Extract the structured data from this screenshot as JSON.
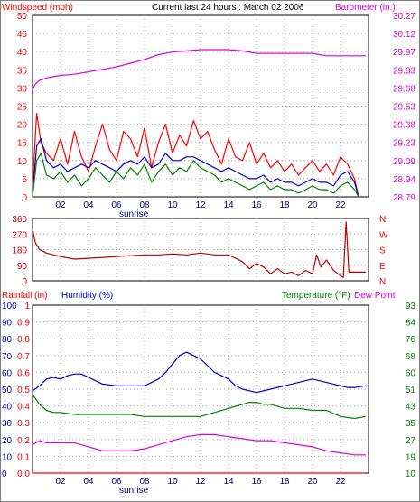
{
  "header": {
    "title": "Current last 24 hours : March 02 2006",
    "left_label": "Windspeed (mph)",
    "right_label": "Barometer (in.)"
  },
  "colors": {
    "red": "#ff0000",
    "blue": "#0000c8",
    "green": "#008000",
    "magenta": "#e000e0",
    "darkred": "#c00000",
    "black": "#000000"
  },
  "chart_data": [
    {
      "id": "wind_baro",
      "type": "line",
      "x_ticks": [
        "02",
        "04",
        "06",
        "08",
        "10",
        "12",
        "14",
        "16",
        "18",
        "20",
        "22"
      ],
      "x_marker": "sunrise",
      "ylabel": "Windspeed (mph)",
      "ylim": [
        0,
        50
      ],
      "y_ticks": [
        0,
        5,
        10,
        15,
        20,
        25,
        30,
        35,
        40,
        45,
        50
      ],
      "y2label": "Barometer (in.)",
      "y2lim": [
        28.79,
        30.27
      ],
      "y2_ticks": [
        "28.79",
        "28.94",
        "29.09",
        "29.23",
        "29.38",
        "29.53",
        "29.68",
        "29.83",
        "29.97",
        "30.12",
        "30.27"
      ],
      "grid": true,
      "series": [
        {
          "id": "gust",
          "axis": "y",
          "color": "red",
          "hours": [
            0,
            0.3,
            0.6,
            1,
            1.5,
            2,
            2.5,
            3,
            3.5,
            4,
            4.5,
            5,
            5.5,
            6,
            6.5,
            7,
            7.5,
            8,
            8.5,
            9,
            9.5,
            10,
            10.5,
            11,
            11.5,
            12,
            12.5,
            13,
            13.5,
            14,
            14.5,
            15,
            15.5,
            16,
            16.5,
            17,
            17.5,
            18,
            18.5,
            19,
            19.5,
            20,
            20.5,
            21,
            21.5,
            22,
            22.5,
            23,
            23.3
          ],
          "values": [
            3,
            23,
            15,
            12,
            10,
            16,
            9,
            18,
            11,
            7,
            14,
            20,
            13,
            10,
            18,
            16,
            11,
            19,
            8,
            15,
            20,
            12,
            17,
            14,
            21,
            16,
            18,
            13,
            9,
            16,
            11,
            10,
            15,
            9,
            12,
            8,
            10,
            7,
            9,
            6,
            8,
            10,
            7,
            9,
            6,
            11,
            9,
            5,
            0
          ]
        },
        {
          "id": "speed",
          "axis": "y",
          "color": "blue",
          "hours": [
            0,
            0.3,
            0.6,
            1,
            1.5,
            2,
            2.5,
            3,
            3.5,
            4,
            4.5,
            5,
            5.5,
            6,
            6.5,
            7,
            7.5,
            8,
            8.5,
            9,
            9.5,
            10,
            10.5,
            11,
            11.5,
            12,
            12.5,
            13,
            13.5,
            14,
            14.5,
            15,
            15.5,
            16,
            16.5,
            17,
            17.5,
            18,
            18.5,
            19,
            19.5,
            20,
            20.5,
            21,
            21.5,
            22,
            22.5,
            23,
            23.3
          ],
          "values": [
            1,
            14,
            16,
            10,
            8,
            9,
            7,
            8,
            9,
            8,
            10,
            9,
            8,
            7,
            9,
            10,
            9,
            11,
            8,
            9,
            12,
            10,
            10,
            11,
            11,
            10,
            9,
            8,
            7,
            8,
            7,
            6,
            5,
            5,
            6,
            4,
            5,
            4,
            4,
            3,
            4,
            5,
            4,
            4,
            3,
            6,
            7,
            4,
            0
          ]
        },
        {
          "id": "average",
          "axis": "y",
          "color": "green",
          "hours": [
            0,
            0.3,
            0.6,
            1,
            1.5,
            2,
            2.5,
            3,
            3.5,
            4,
            4.5,
            5,
            5.5,
            6,
            6.5,
            7,
            7.5,
            8,
            8.5,
            9,
            9.5,
            10,
            10.5,
            11,
            11.5,
            12,
            12.5,
            13,
            13.5,
            14,
            14.5,
            15,
            15.5,
            16,
            16.5,
            17,
            17.5,
            18,
            18.5,
            19,
            19.5,
            20,
            20.5,
            21,
            21.5,
            22,
            22.5,
            23,
            23.3
          ],
          "values": [
            0,
            10,
            12,
            6,
            5,
            7,
            4,
            6,
            3,
            5,
            8,
            6,
            4,
            7,
            5,
            8,
            6,
            9,
            4,
            7,
            9,
            6,
            8,
            7,
            10,
            8,
            7,
            6,
            4,
            5,
            4,
            3,
            2,
            3,
            4,
            2,
            3,
            2,
            2,
            1,
            2,
            3,
            2,
            2,
            1,
            3,
            4,
            2,
            0
          ]
        },
        {
          "id": "barometer",
          "axis": "y2",
          "color": "magenta",
          "hours": [
            0,
            0.2,
            0.5,
            1,
            1.5,
            2,
            3,
            4,
            5,
            6,
            7,
            8,
            9,
            10,
            11,
            12,
            13,
            14,
            15,
            16,
            17,
            18,
            19,
            20,
            21,
            22,
            23,
            23.8
          ],
          "values": [
            29.66,
            29.71,
            29.74,
            29.76,
            29.77,
            29.78,
            29.79,
            29.81,
            29.83,
            29.85,
            29.88,
            29.91,
            29.95,
            29.97,
            29.98,
            29.99,
            29.99,
            29.99,
            29.98,
            29.96,
            29.96,
            29.96,
            29.96,
            29.96,
            29.94,
            29.94,
            29.94,
            29.94
          ]
        }
      ]
    },
    {
      "id": "wind_direction",
      "type": "line",
      "x_ticks": [
        "02",
        "04",
        "06",
        "08",
        "10",
        "12",
        "14",
        "16",
        "18",
        "20",
        "22"
      ],
      "ylim": [
        0,
        360
      ],
      "y_ticks": [
        0,
        90,
        180,
        270,
        360
      ],
      "y2_labels": [
        "N",
        "W",
        "S",
        "E",
        "N"
      ],
      "grid": true,
      "series": [
        {
          "id": "direction",
          "axis": "y",
          "color": "darkred",
          "hours": [
            0,
            0.2,
            0.5,
            1,
            2,
            3,
            4,
            5,
            6,
            7,
            8,
            9,
            10,
            11,
            12,
            13,
            14,
            14.5,
            15,
            15.5,
            16,
            16.5,
            17,
            17.5,
            18,
            18.5,
            19,
            19.5,
            20,
            20.3,
            20.6,
            21,
            21.5,
            22,
            22.2,
            22.4,
            22.6,
            23,
            23.8
          ],
          "values": [
            300,
            220,
            180,
            160,
            140,
            125,
            130,
            135,
            140,
            145,
            150,
            150,
            155,
            150,
            160,
            150,
            150,
            130,
            110,
            70,
            100,
            80,
            40,
            70,
            40,
            50,
            30,
            60,
            40,
            150,
            80,
            120,
            60,
            30,
            20,
            340,
            50,
            50,
            50
          ]
        }
      ]
    },
    {
      "id": "rain_humidity_temp",
      "type": "line",
      "x_ticks": [
        "02",
        "04",
        "06",
        "08",
        "10",
        "12",
        "14",
        "16",
        "18",
        "20",
        "22"
      ],
      "x_marker": "sunrise",
      "labels": {
        "rain": "Rainfall (in)",
        "humidity": "Humidity (%)",
        "temperature": "Temperature (°F)",
        "dewpoint": "Dew Point"
      },
      "humidity_ticks": [
        0,
        10,
        20,
        30,
        40,
        50,
        60,
        70,
        80,
        90,
        100
      ],
      "rain_ticks": [
        "0.0",
        "0.1",
        "0.2",
        "0.3",
        "0.4",
        "0.5",
        "0.6",
        "0.7",
        "0.8",
        "0.9",
        "1"
      ],
      "temp_ticks": [
        10,
        19,
        27,
        35,
        43,
        51,
        60,
        68,
        76,
        84,
        93
      ],
      "grid": true,
      "series": [
        {
          "id": "humidity",
          "axis": "humidity",
          "color": "blue",
          "hours": [
            0,
            0.5,
            1,
            1.5,
            2,
            2.5,
            3,
            3.5,
            4,
            4.5,
            5,
            6,
            7,
            8,
            9,
            9.5,
            10,
            10.5,
            11,
            11.5,
            12,
            12.5,
            13,
            13.5,
            14,
            14.5,
            15,
            16,
            17,
            18,
            19,
            20,
            20.5,
            21,
            21.5,
            22,
            22.5,
            23,
            23.8
          ],
          "values": [
            49,
            52,
            56,
            57,
            56,
            58,
            59,
            59,
            57,
            55,
            53,
            52,
            52,
            52,
            56,
            60,
            65,
            70,
            72,
            70,
            68,
            64,
            60,
            58,
            56,
            52,
            50,
            48,
            50,
            52,
            54,
            56,
            55,
            54,
            53,
            52,
            51,
            51,
            52
          ]
        },
        {
          "id": "temperature",
          "axis": "temp",
          "color": "green",
          "hours": [
            0,
            0.5,
            1,
            1.5,
            2,
            3,
            4,
            5,
            6,
            7,
            8,
            9,
            10,
            11,
            12,
            13,
            14,
            15,
            15.5,
            16,
            16.5,
            17,
            18,
            19,
            20,
            21,
            22,
            23,
            23.8
          ],
          "values": [
            49,
            44,
            41,
            40,
            40,
            39,
            39,
            39,
            39,
            39,
            38,
            38,
            38,
            38,
            38,
            40,
            42,
            44,
            45,
            45,
            44,
            44,
            42,
            42,
            41,
            41,
            38,
            37,
            38
          ]
        },
        {
          "id": "dewpoint",
          "axis": "temp",
          "color": "magenta",
          "hours": [
            0,
            0.5,
            1,
            2,
            3,
            4,
            5,
            6,
            7,
            8,
            9,
            10,
            11,
            12,
            13,
            14,
            15,
            16,
            17,
            18,
            19,
            20,
            21,
            22,
            23,
            23.8
          ],
          "values": [
            24,
            26,
            25,
            25,
            25,
            23,
            21,
            21,
            21,
            22,
            24,
            26,
            28,
            29,
            29,
            28,
            27,
            26,
            26,
            25,
            24,
            23,
            21,
            20,
            19,
            19
          ]
        },
        {
          "id": "rain",
          "axis": "rain",
          "color": "red",
          "hours": [
            0,
            23.8
          ],
          "values": [
            0.0,
            0.0
          ]
        }
      ]
    }
  ]
}
